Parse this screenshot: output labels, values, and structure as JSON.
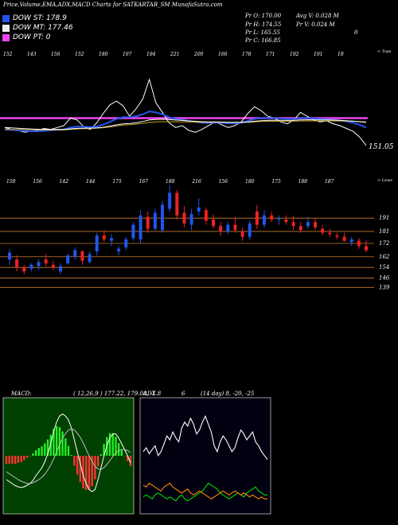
{
  "header": {
    "title": "Price,Volume,EMA,ADX,MACD Charts for SATKARTAR_SM MunafaSutra.com"
  },
  "dow_legend": [
    {
      "label": "DOW ST: 178.9",
      "color": "#2255ee"
    },
    {
      "label": "DOW MT: 177.46",
      "color": "#eeeeee"
    },
    {
      "label": "DOW PT: 0",
      "color": "#ee44ee"
    }
  ],
  "stats": {
    "pr_o": "Pr O: 170.00",
    "pr_h": "Pr H: 174.55",
    "pr_l": "Pr L: 165.55",
    "pr_c": "Pr C: 166.85",
    "avg_v": "Avg V: 0.028 M",
    "pr_v": "Pr V: 0.024 M",
    "pct": "0"
  },
  "labels": {
    "tops": "< Tops",
    "lows": "< Lows",
    "last_price": "151.05",
    "macd_title": "MACD:",
    "macd_values": "( 12,26,9 ) 177.22, 179.08, -1.8",
    "adx_title": "ADX",
    "adx_value": "6",
    "adx_values": "(14 day) 8, -20, -25"
  },
  "chart_data": [
    {
      "type": "line",
      "name": "price-ema",
      "top_labels": [
        "152",
        "143",
        "156",
        "152",
        "180",
        "197",
        "194",
        "221",
        "200",
        "166",
        "178",
        "171",
        "192",
        "191",
        "18"
      ],
      "series": [
        {
          "name": "",
          "color": "#ffffff",
          "values": [
            170,
            168,
            167,
            165,
            166,
            167,
            169,
            168,
            170,
            172,
            180,
            178,
            171,
            168,
            175,
            185,
            194,
            198,
            193,
            182,
            190,
            200,
            221,
            196,
            186,
            175,
            170,
            172,
            167,
            165,
            168,
            172,
            176,
            173,
            170,
            172,
            176,
            185,
            192,
            188,
            182,
            180,
            176,
            174,
            178,
            186,
            182,
            178,
            176,
            177,
            174,
            172,
            169,
            166,
            160,
            151.05
          ]
        },
        {
          "name": "",
          "color": "#2255ee",
          "values": [
            168,
            167.5,
            167,
            166.5,
            166,
            166,
            166.5,
            167,
            167.5,
            168,
            170,
            171,
            171,
            170.5,
            171,
            173,
            176,
            179,
            181,
            181,
            182,
            184,
            187,
            186,
            184,
            181,
            179,
            178,
            177,
            176,
            175,
            175,
            175,
            175,
            174.5,
            174.5,
            175,
            177,
            179,
            180,
            180,
            180,
            179.5,
            179,
            179,
            180,
            180,
            179.5,
            179,
            178.5,
            178,
            177.5,
            176.5,
            175,
            173,
            170
          ]
        },
        {
          "name": "",
          "color": "#c8a020",
          "values": [
            168,
            168,
            168,
            167.8,
            167.6,
            167.5,
            167.4,
            167.4,
            167.4,
            167.5,
            168,
            168.5,
            168.8,
            169,
            169.3,
            169.8,
            170.6,
            171.6,
            172.5,
            173,
            173.6,
            174.4,
            175.5,
            176,
            176.2,
            176.2,
            176.1,
            176,
            175.9,
            175.7,
            175.6,
            175.5,
            175.5,
            175.5,
            175.4,
            175.4,
            175.4,
            175.6,
            176,
            176.3,
            176.5,
            176.6,
            176.7,
            176.7,
            176.8,
            176.9,
            177,
            177,
            177,
            177,
            177,
            176.9,
            176.8,
            176.6,
            176.3,
            175.9
          ]
        },
        {
          "name": "",
          "color": "#ffffff",
          "values": [
            170,
            169.6,
            169.2,
            168.8,
            168.5,
            168.2,
            168,
            167.9,
            167.9,
            168,
            168.6,
            169.1,
            169.3,
            169.3,
            169.6,
            170.3,
            171.5,
            172.8,
            173.8,
            174.3,
            175,
            176.3,
            178,
            178.6,
            178.8,
            178.4,
            177.9,
            177.5,
            177,
            176.6,
            176.2,
            176,
            175.9,
            175.8,
            175.6,
            175.5,
            175.6,
            176,
            176.7,
            177.2,
            177.5,
            177.6,
            177.6,
            177.5,
            177.6,
            178,
            178.2,
            178.2,
            178.1,
            178,
            177.8,
            177.5,
            177.2,
            176.8,
            176.2,
            175.4
          ]
        }
      ],
      "levels": [
        {
          "name": "dow-pt-line",
          "value": 180,
          "color": "#ee44ee"
        }
      ]
    },
    {
      "type": "bar",
      "name": "candlestick",
      "top_labels": [
        "159",
        "156",
        "142",
        "144",
        "175",
        "167",
        "188",
        "216",
        "156",
        "180",
        "175",
        "188",
        "187"
      ],
      "ytick_labels": [
        "191",
        "181",
        "172",
        "162",
        "154",
        "146",
        "139"
      ],
      "candles": [
        {
          "o": 160,
          "h": 168,
          "l": 156,
          "c": 165
        },
        {
          "o": 160,
          "h": 163,
          "l": 151,
          "c": 154
        },
        {
          "o": 154,
          "h": 156,
          "l": 149,
          "c": 151
        },
        {
          "o": 153,
          "h": 157,
          "l": 151,
          "c": 156
        },
        {
          "o": 155,
          "h": 160,
          "l": 152,
          "c": 158
        },
        {
          "o": 160,
          "h": 164,
          "l": 155,
          "c": 157
        },
        {
          "o": 156,
          "h": 159,
          "l": 152,
          "c": 154
        },
        {
          "o": 151,
          "h": 157,
          "l": 149,
          "c": 155
        },
        {
          "o": 157,
          "h": 164,
          "l": 156,
          "c": 163
        },
        {
          "o": 162,
          "h": 169,
          "l": 160,
          "c": 167
        },
        {
          "o": 166,
          "h": 167,
          "l": 156,
          "c": 159
        },
        {
          "o": 158,
          "h": 166,
          "l": 157,
          "c": 164
        },
        {
          "o": 166,
          "h": 180,
          "l": 163,
          "c": 178
        },
        {
          "o": 178,
          "h": 182,
          "l": 173,
          "c": 175
        },
        {
          "o": 174,
          "h": 179,
          "l": 170,
          "c": 176
        },
        {
          "o": 166,
          "h": 170,
          "l": 163,
          "c": 168
        },
        {
          "o": 169,
          "h": 177,
          "l": 167,
          "c": 175
        },
        {
          "o": 176,
          "h": 188,
          "l": 174,
          "c": 186
        },
        {
          "o": 175,
          "h": 197,
          "l": 172,
          "c": 193
        },
        {
          "o": 192,
          "h": 196,
          "l": 180,
          "c": 183
        },
        {
          "o": 183,
          "h": 198,
          "l": 182,
          "c": 195
        },
        {
          "o": 182,
          "h": 204,
          "l": 180,
          "c": 201
        },
        {
          "o": 198,
          "h": 216,
          "l": 196,
          "c": 210
        },
        {
          "o": 210,
          "h": 212,
          "l": 190,
          "c": 193
        },
        {
          "o": 195,
          "h": 200,
          "l": 184,
          "c": 187
        },
        {
          "o": 186,
          "h": 198,
          "l": 182,
          "c": 194
        },
        {
          "o": 196,
          "h": 206,
          "l": 193,
          "c": 199
        },
        {
          "o": 197,
          "h": 199,
          "l": 186,
          "c": 189
        },
        {
          "o": 190,
          "h": 194,
          "l": 183,
          "c": 185
        },
        {
          "o": 185,
          "h": 188,
          "l": 178,
          "c": 181
        },
        {
          "o": 181,
          "h": 188,
          "l": 179,
          "c": 186
        },
        {
          "o": 186,
          "h": 192,
          "l": 180,
          "c": 182
        },
        {
          "o": 181,
          "h": 184,
          "l": 174,
          "c": 177
        },
        {
          "o": 177,
          "h": 189,
          "l": 175,
          "c": 187
        },
        {
          "o": 196,
          "h": 201,
          "l": 183,
          "c": 186
        },
        {
          "o": 186,
          "h": 197,
          "l": 184,
          "c": 193
        },
        {
          "o": 193,
          "h": 196,
          "l": 188,
          "c": 190
        },
        {
          "o": 190,
          "h": 193,
          "l": 186,
          "c": 191
        },
        {
          "o": 190,
          "h": 193,
          "l": 186,
          "c": 188
        },
        {
          "o": 188,
          "h": 193,
          "l": 182,
          "c": 185
        },
        {
          "o": 185,
          "h": 188,
          "l": 180,
          "c": 182
        },
        {
          "o": 185,
          "h": 192,
          "l": 183,
          "c": 188
        },
        {
          "o": 188,
          "h": 191,
          "l": 182,
          "c": 184
        },
        {
          "o": 183,
          "h": 186,
          "l": 178,
          "c": 180
        },
        {
          "o": 180,
          "h": 183,
          "l": 177,
          "c": 179
        },
        {
          "o": 178,
          "h": 180,
          "l": 175,
          "c": 177
        },
        {
          "o": 177,
          "h": 180,
          "l": 173,
          "c": 174
        },
        {
          "o": 173,
          "h": 177,
          "l": 170,
          "c": 175
        },
        {
          "o": 174,
          "h": 176,
          "l": 168,
          "c": 170
        },
        {
          "o": 170,
          "h": 174.55,
          "l": 165.55,
          "c": 166.85
        }
      ]
    },
    {
      "type": "bar",
      "name": "macd",
      "series": [
        {
          "name": "",
          "color": "#ffffff",
          "values": [
            -6,
            -6.5,
            -7,
            -7.5,
            -7.8,
            -8,
            -7.8,
            -7.4,
            -7,
            -6.2,
            -5,
            -4,
            -3,
            -1.5,
            0.5,
            3,
            6,
            8.5,
            10,
            10.5,
            10,
            9,
            7,
            4,
            1,
            -2,
            -5,
            -7,
            -8.5,
            -9,
            -8.5,
            -6,
            -3,
            0,
            2.5,
            4.5,
            5.5,
            5.5,
            4.5,
            3,
            1.5,
            0,
            -1.8
          ]
        },
        {
          "name": "",
          "color": "#bbbbbb",
          "values": [
            -4,
            -4.5,
            -5,
            -5.5,
            -6,
            -6.4,
            -6.7,
            -6.9,
            -7,
            -6.8,
            -6.4,
            -6,
            -5.4,
            -4.6,
            -3.6,
            -2.3,
            -0.8,
            1,
            2.8,
            4.4,
            5.6,
            6.5,
            6.8,
            6.5,
            5.7,
            4.6,
            3.2,
            1.6,
            0,
            -1.4,
            -2.6,
            -3.3,
            -3.4,
            -3,
            -2.2,
            -1.2,
            -0.2,
            0.7,
            1.3,
            1.6,
            1.6,
            1.3,
            0.8
          ]
        },
        {
          "name": "",
          "color": "#ff3333",
          "values": [
            -2,
            -2,
            -2,
            -2,
            -1.8,
            -1.6,
            -1.1,
            -0.5,
            0,
            0.6,
            1.4,
            2,
            2.4,
            3.1,
            4.1,
            5.3,
            6.8,
            7.5,
            7.2,
            6.1,
            4.4,
            2.5,
            0.2,
            -2.5,
            -4.7,
            -6.6,
            -8.2,
            -8.6,
            -8.5,
            -7.6,
            -5.9,
            -2.7,
            0.4,
            3,
            4.7,
            5.7,
            5.7,
            4.8,
            3.2,
            1.4,
            -0.1,
            -1.3,
            -2.6
          ]
        }
      ]
    },
    {
      "type": "line",
      "name": "adx",
      "series": [
        {
          "name": "",
          "color": "#ffffff",
          "values": [
            30,
            32,
            29,
            31,
            33,
            28,
            30,
            34,
            38,
            36,
            40,
            37,
            35,
            42,
            45,
            43,
            47,
            44,
            39,
            41,
            45,
            48,
            44,
            40,
            33,
            30,
            35,
            38,
            36,
            33,
            30,
            32,
            37,
            41,
            39,
            36,
            38,
            40,
            35,
            33,
            30,
            28,
            26
          ]
        },
        {
          "name": "",
          "color": "#00dd00",
          "values": [
            7,
            8,
            7,
            6,
            8,
            9,
            8,
            7,
            6,
            7,
            6,
            5,
            7,
            8,
            6,
            5,
            6,
            7,
            8,
            9,
            10,
            12,
            14,
            13,
            12,
            11,
            9,
            8,
            7,
            6,
            7,
            8,
            9,
            8,
            7,
            9,
            10,
            11,
            12,
            10,
            9,
            8,
            8
          ]
        },
        {
          "name": "",
          "color": "#ff8800",
          "values": [
            13,
            12,
            14,
            13,
            12,
            11,
            10,
            12,
            13,
            14,
            12,
            11,
            10,
            9,
            10,
            11,
            9,
            8,
            9,
            10,
            9,
            8,
            7,
            6,
            7,
            8,
            9,
            10,
            9,
            8,
            9,
            10,
            9,
            8,
            9,
            8,
            7,
            8,
            7,
            6,
            7,
            6,
            6
          ]
        }
      ]
    }
  ]
}
